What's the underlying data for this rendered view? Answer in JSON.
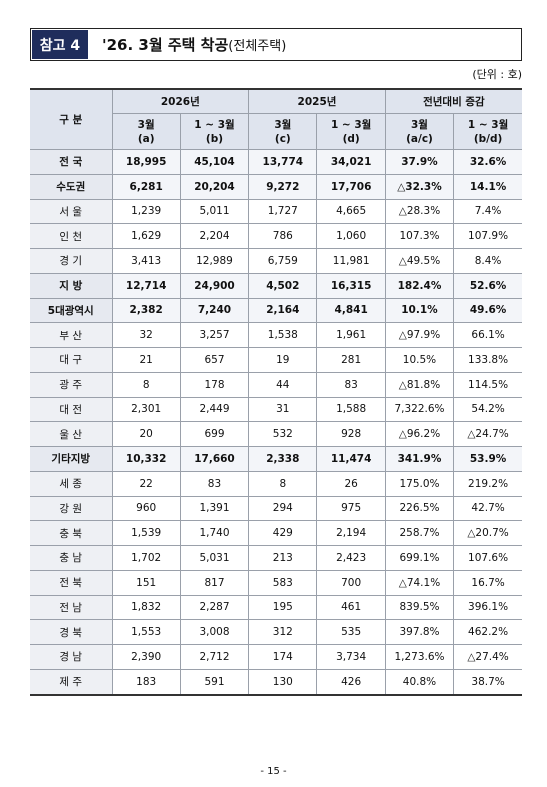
{
  "header": {
    "badge": "참고 4",
    "title": "'26. 3월 주택 착공",
    "subtitle": "(전체주택)"
  },
  "unit": "(단위 : 호)",
  "table": {
    "corner": "구 분",
    "group_headers": [
      "2026년",
      "2025년",
      "전년대비 증감"
    ],
    "sub_headers": [
      {
        "label": "3월",
        "code": "(a)"
      },
      {
        "label": "1 ~ 3월",
        "code": "(b)"
      },
      {
        "label": "3월",
        "code": "(c)"
      },
      {
        "label": "1 ~ 3월",
        "code": "(d)"
      },
      {
        "label": "3월",
        "code": "(a/c)"
      },
      {
        "label": "1 ~ 3월",
        "code": "(b/d)"
      }
    ],
    "rows": [
      {
        "bold": true,
        "cells": [
          "전 국",
          "18,995",
          "45,104",
          "13,774",
          "34,021",
          "37.9%",
          "32.6%"
        ]
      },
      {
        "bold": true,
        "cells": [
          "수도권",
          "6,281",
          "20,204",
          "9,272",
          "17,706",
          "△32.3%",
          "14.1%"
        ]
      },
      {
        "bold": false,
        "cells": [
          "서 울",
          "1,239",
          "5,011",
          "1,727",
          "4,665",
          "△28.3%",
          "7.4%"
        ]
      },
      {
        "bold": false,
        "cells": [
          "인 천",
          "1,629",
          "2,204",
          "786",
          "1,060",
          "107.3%",
          "107.9%"
        ]
      },
      {
        "bold": false,
        "cells": [
          "경 기",
          "3,413",
          "12,989",
          "6,759",
          "11,981",
          "△49.5%",
          "8.4%"
        ]
      },
      {
        "bold": true,
        "cells": [
          "지   방",
          "12,714",
          "24,900",
          "4,502",
          "16,315",
          "182.4%",
          "52.6%"
        ]
      },
      {
        "bold": true,
        "cells": [
          "5대광역시",
          "2,382",
          "7,240",
          "2,164",
          "4,841",
          "10.1%",
          "49.6%"
        ]
      },
      {
        "bold": false,
        "cells": [
          "부 산",
          "32",
          "3,257",
          "1,538",
          "1,961",
          "△97.9%",
          "66.1%"
        ]
      },
      {
        "bold": false,
        "cells": [
          "대 구",
          "21",
          "657",
          "19",
          "281",
          "10.5%",
          "133.8%"
        ]
      },
      {
        "bold": false,
        "cells": [
          "광 주",
          "8",
          "178",
          "44",
          "83",
          "△81.8%",
          "114.5%"
        ]
      },
      {
        "bold": false,
        "cells": [
          "대 전",
          "2,301",
          "2,449",
          "31",
          "1,588",
          "7,322.6%",
          "54.2%"
        ]
      },
      {
        "bold": false,
        "cells": [
          "울 산",
          "20",
          "699",
          "532",
          "928",
          "△96.2%",
          "△24.7%"
        ]
      },
      {
        "bold": true,
        "cells": [
          "기타지방",
          "10,332",
          "17,660",
          "2,338",
          "11,474",
          "341.9%",
          "53.9%"
        ]
      },
      {
        "bold": false,
        "cells": [
          "세 종",
          "22",
          "83",
          "8",
          "26",
          "175.0%",
          "219.2%"
        ]
      },
      {
        "bold": false,
        "cells": [
          "강 원",
          "960",
          "1,391",
          "294",
          "975",
          "226.5%",
          "42.7%"
        ]
      },
      {
        "bold": false,
        "cells": [
          "충 북",
          "1,539",
          "1,740",
          "429",
          "2,194",
          "258.7%",
          "△20.7%"
        ]
      },
      {
        "bold": false,
        "cells": [
          "충 남",
          "1,702",
          "5,031",
          "213",
          "2,423",
          "699.1%",
          "107.6%"
        ]
      },
      {
        "bold": false,
        "cells": [
          "전 북",
          "151",
          "817",
          "583",
          "700",
          "△74.1%",
          "16.7%"
        ]
      },
      {
        "bold": false,
        "cells": [
          "전 남",
          "1,832",
          "2,287",
          "195",
          "461",
          "839.5%",
          "396.1%"
        ]
      },
      {
        "bold": false,
        "cells": [
          "경 북",
          "1,553",
          "3,008",
          "312",
          "535",
          "397.8%",
          "462.2%"
        ]
      },
      {
        "bold": false,
        "cells": [
          "경 남",
          "2,390",
          "2,712",
          "174",
          "3,734",
          "1,273.6%",
          "△27.4%"
        ]
      },
      {
        "bold": false,
        "cells": [
          "제 주",
          "183",
          "591",
          "130",
          "426",
          "40.8%",
          "38.7%"
        ]
      }
    ]
  },
  "page_number": "- 15 -"
}
